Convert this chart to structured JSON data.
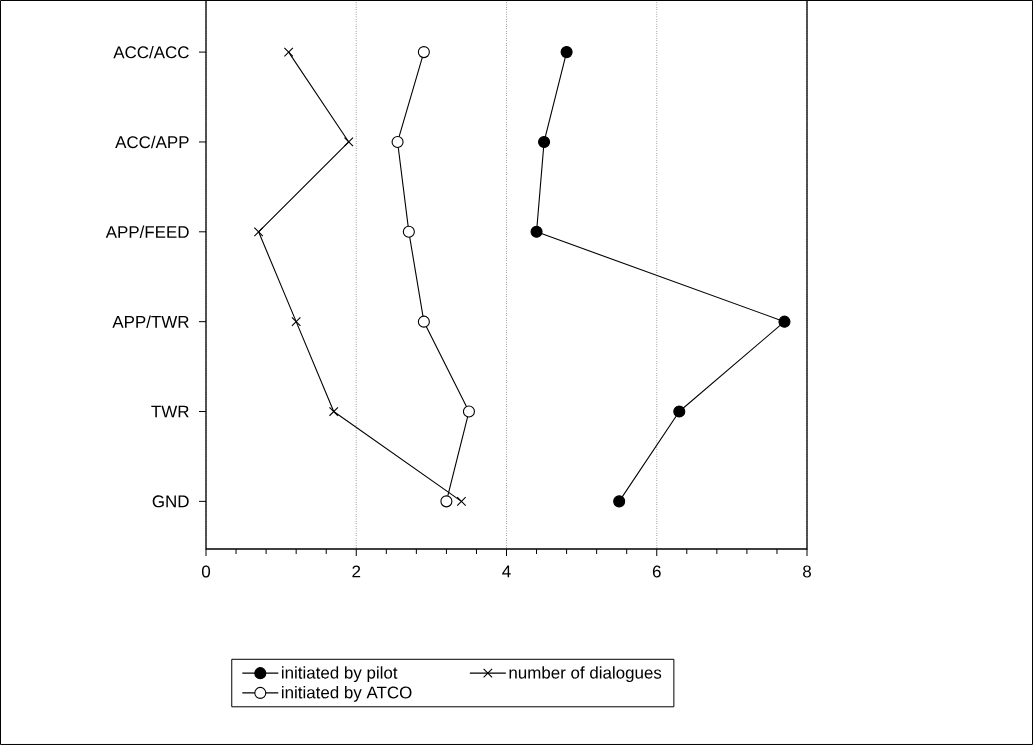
{
  "chart_data": {
    "type": "line",
    "orientation": "horizontal",
    "categories": [
      "ACC/ACC",
      "ACC/APP",
      "APP/FEED",
      "APP/TWR",
      "TWR",
      "GND"
    ],
    "series": [
      {
        "name": "initiated by pilot",
        "color": "#000000",
        "marker": "circle",
        "values": [
          4.8,
          4.5,
          4.4,
          7.7,
          6.3,
          5.5
        ]
      },
      {
        "name": "number of dialogues",
        "color": "#000000",
        "marker": "cross",
        "values": [
          1.1,
          1.9,
          0.7,
          1.2,
          1.7,
          3.4
        ]
      },
      {
        "name": "initiated by ATCO",
        "color": "#000000",
        "marker": "circle",
        "values": [
          2.9,
          2.55,
          2.7,
          2.9,
          3.5,
          3.2
        ]
      }
    ],
    "xlim": [
      0,
      8
    ],
    "xticks": [
      0,
      2,
      4,
      6,
      8
    ],
    "grid": "x",
    "legend": "bottom",
    "line_style": "solid"
  }
}
